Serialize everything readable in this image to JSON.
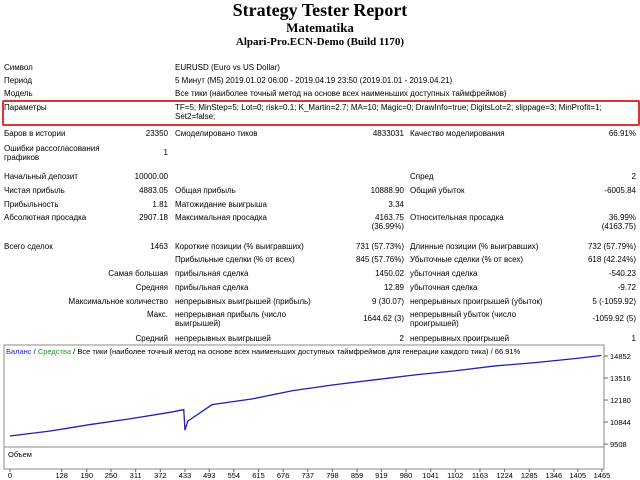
{
  "header": {
    "title": "Strategy Tester Report",
    "expert": "Matematika",
    "server": "Alpari-Pro.ECN-Demo (Build 1170)"
  },
  "info": [
    {
      "label": "Символ",
      "value": "EURUSD (Euro vs US Dollar)"
    },
    {
      "label": "Период",
      "value": "5 Минут (M5) 2019.01.02 06:00 - 2019.04.19 23:50 (2019.01.01 - 2019.04.21)"
    },
    {
      "label": "Модель",
      "value": "Все тики (наиболее точный метод на основе всех наименьших доступных таймфреймов)"
    },
    {
      "label": "Параметры",
      "value": [
        "TF=5; MinStep=5; Lot=0; risk=0.1; K_Martin=2.7; MA=10; Magic=0; DrawInfo=true; DigitsLot=2; slippage=3; MinProfit=1;",
        "Set2=false;"
      ]
    }
  ],
  "stats": [
    {
      "l1": "Баров в истории",
      "v1": "23350",
      "l2": "Смоделировано тиков",
      "v2": "4833031",
      "l3": "Качество моделирования",
      "v3": "66.91%"
    },
    {
      "l1": [
        "Ошибки рассогласования",
        "графиков"
      ],
      "v1": "1"
    },
    {
      "l1": "Начальный депозит",
      "v1": "10000.00",
      "l3": "Спред",
      "v3": "2"
    },
    {
      "l1": "Чистая прибыль",
      "v1": "4883.05",
      "l2": "Общая прибыль",
      "v2": "10888.90",
      "l3": "Общий убыток",
      "v3": "-6005.84"
    },
    {
      "l1": "Прибыльность",
      "v1": "1.81",
      "l2": "Матожидание выигрыша",
      "v2": "3.34"
    },
    {
      "l1": "Абсолютная просадка",
      "v1": "2907.18",
      "l2": "Максимальная просадка",
      "v2": [
        "4163.75",
        "(36.99%)"
      ],
      "l3": "Относительная просадка",
      "v3": [
        "36.99%",
        "(4163.75)"
      ]
    },
    {
      "l1": "Всего сделок",
      "v1": "1463",
      "l2": "Короткие позиции (% выигравших)",
      "v2": "731 (57.73%)",
      "l3": "Длинные позиции (% выигравших)",
      "v3": "732 (57.79%)"
    },
    {
      "l2": "Прибыльные сделки (% от всех)",
      "v2": "845 (57.76%)",
      "l3": "Убыточные сделки (% от всех)",
      "v3": "618 (42.24%)"
    },
    {
      "r1": "Самая большая",
      "l2": "прибыльная сделка",
      "v2": "1450.02",
      "l3": "убыточная сделка",
      "v3": "-540.23"
    },
    {
      "r1": "Средняя",
      "l2": "прибыльная сделка",
      "v2": "12.89",
      "l3": "убыточная сделка",
      "v3": "-9.72"
    },
    {
      "r1": "Максимальное количество",
      "l2": "непрерывных выигрышей (прибыль)",
      "v2": "9 (30.07)",
      "l3": "непрерывных проигрышей (убыток)",
      "v3": "5 (-1059.92)"
    },
    {
      "r1": "Макс.",
      "l2": [
        "непрерывная прибыль (число",
        "выигрышей)"
      ],
      "v2": "1644.62 (3)",
      "l3": [
        "непрерывный убыток (число",
        "проигрышей)"
      ],
      "v3": "-1059.92 (5)"
    },
    {
      "r1": "Средний",
      "l2": "непрерывных выигрышей",
      "v2": "2",
      "l3": "непрерывных проигрышей",
      "v3": "1"
    }
  ],
  "chart": {
    "legend": [
      "Баланс",
      "Средства",
      "Все тики (наиболее точный метод на основе всех наименьших доступных таймфреймов для генерации каждого тика)",
      "66.91%"
    ],
    "volume_label": "Объем",
    "x": [
      0,
      100,
      200,
      300,
      400,
      430,
      433,
      440,
      500,
      600,
      700,
      800,
      900,
      1000,
      1100,
      1200,
      1300,
      1400,
      1463
    ],
    "balance": [
      10000,
      10300,
      10700,
      11050,
      11450,
      11600,
      10350,
      10900,
      11900,
      12250,
      12750,
      13100,
      13400,
      13700,
      13950,
      14250,
      14450,
      14700,
      14883
    ],
    "color": "#1f1fb4",
    "xlim": [
      0,
      1470
    ],
    "ylim": [
      9330,
      15520
    ],
    "yticks": [
      14852,
      13516,
      12180,
      10844,
      9508
    ],
    "xticks": [
      0,
      128,
      190,
      250,
      311,
      372,
      433,
      493,
      554,
      615,
      676,
      737,
      798,
      859,
      919,
      980,
      1041,
      1102,
      1163,
      1224,
      1285,
      1346,
      1405,
      1465
    ]
  }
}
